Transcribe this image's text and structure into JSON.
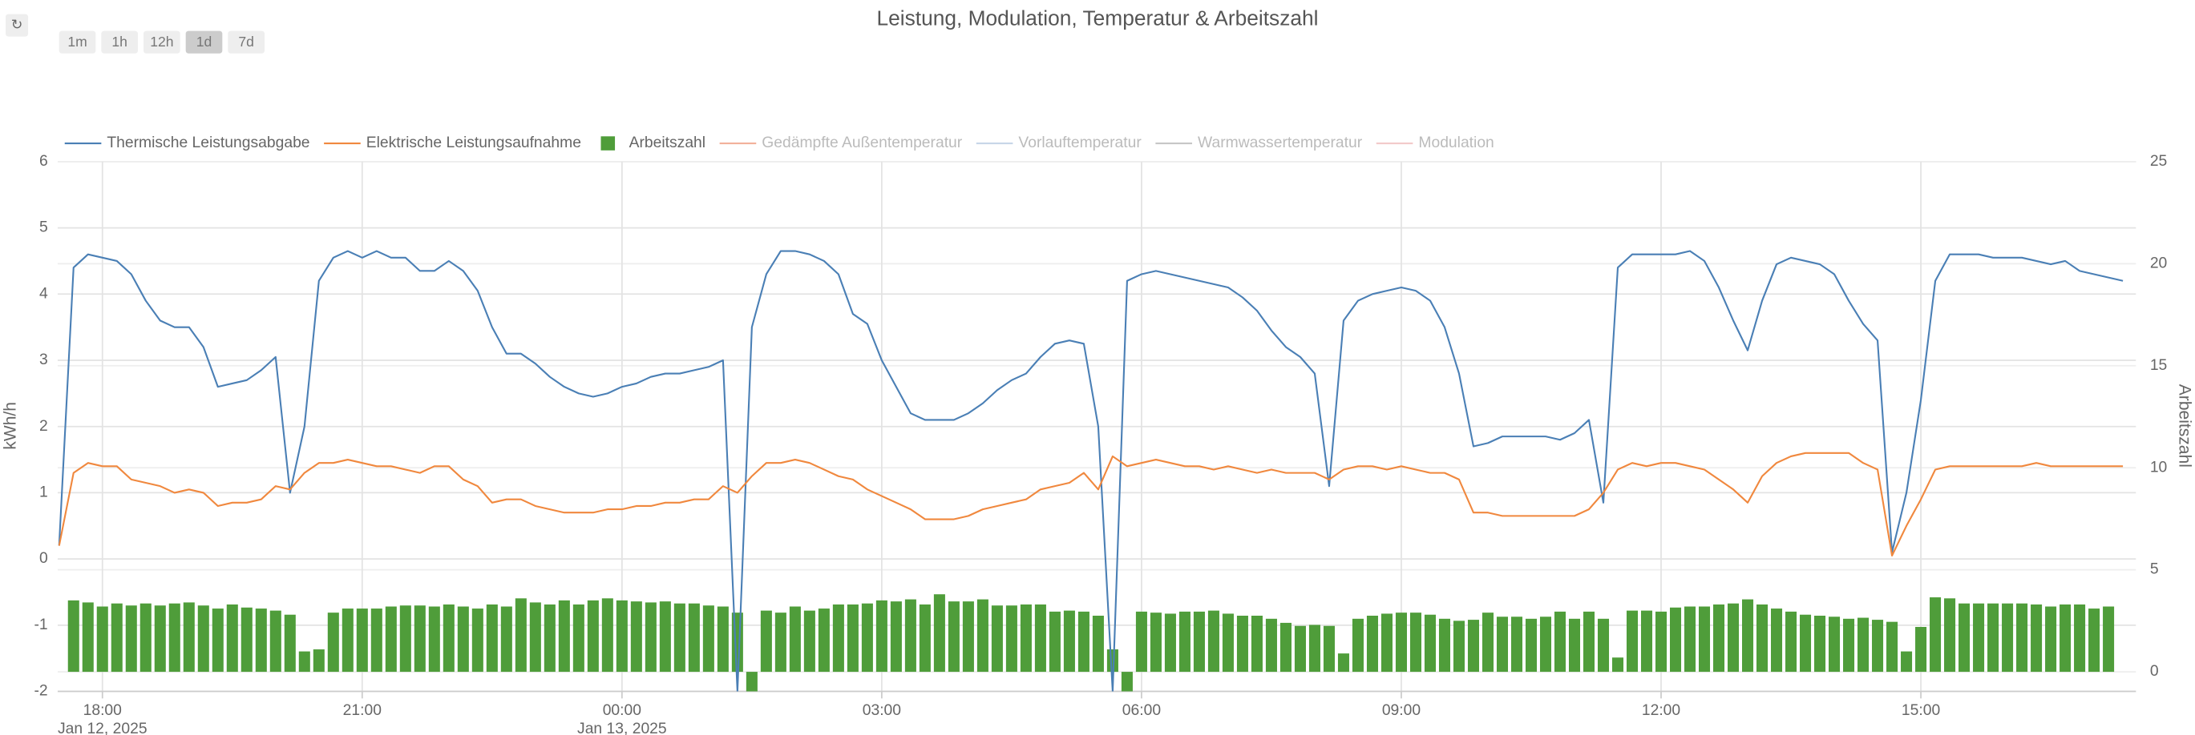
{
  "controls": {
    "refresh": "↻",
    "ranges": [
      "1m",
      "1h",
      "12h",
      "1d",
      "7d"
    ],
    "active_range": "1d"
  },
  "chart_data": {
    "type": "line",
    "title": "Leistung, Modulation, Temperatur & Arbeitszahl",
    "y_label": "kWh/h",
    "y2_label": "Arbeitszahl",
    "xlim": [
      "2025-01-12T17:29",
      "2025-01-13T17:29"
    ],
    "xticks": [
      {
        "value": "2025-01-12T18:00",
        "label": "18:00"
      },
      {
        "value": "2025-01-12T21:00",
        "label": "21:00"
      },
      {
        "value": "2025-01-13T00:00",
        "label": "00:00"
      },
      {
        "value": "2025-01-13T03:00",
        "label": "03:00"
      },
      {
        "value": "2025-01-13T06:00",
        "label": "06:00"
      },
      {
        "value": "2025-01-13T09:00",
        "label": "09:00"
      },
      {
        "value": "2025-01-13T12:00",
        "label": "12:00"
      },
      {
        "value": "2025-01-13T15:00",
        "label": "15:00"
      }
    ],
    "x_date_labels": [
      {
        "value": "2025-01-12T18:00",
        "label": "Jan 12, 2025"
      },
      {
        "value": "2025-01-13T00:00",
        "label": "Jan 13, 2025"
      }
    ],
    "ylim": [
      -2,
      6
    ],
    "yticks": [
      -2,
      -1,
      0,
      1,
      2,
      3,
      4,
      5,
      6
    ],
    "y2lim": [
      -0.96,
      25
    ],
    "y2ticks": [
      0,
      5,
      10,
      15,
      20,
      25
    ],
    "grid": true,
    "x": [
      "2025-01-12T17:30",
      "2025-01-12T17:40",
      "2025-01-12T17:50",
      "2025-01-12T18:00",
      "2025-01-12T18:10",
      "2025-01-12T18:20",
      "2025-01-12T18:30",
      "2025-01-12T18:40",
      "2025-01-12T18:50",
      "2025-01-12T19:00",
      "2025-01-12T19:10",
      "2025-01-12T19:20",
      "2025-01-12T19:30",
      "2025-01-12T19:40",
      "2025-01-12T19:50",
      "2025-01-12T20:00",
      "2025-01-12T20:10",
      "2025-01-12T20:20",
      "2025-01-12T20:30",
      "2025-01-12T20:40",
      "2025-01-12T20:50",
      "2025-01-12T21:00",
      "2025-01-12T21:10",
      "2025-01-12T21:20",
      "2025-01-12T21:30",
      "2025-01-12T21:40",
      "2025-01-12T21:50",
      "2025-01-12T22:00",
      "2025-01-12T22:10",
      "2025-01-12T22:20",
      "2025-01-12T22:30",
      "2025-01-12T22:40",
      "2025-01-12T22:50",
      "2025-01-12T23:00",
      "2025-01-12T23:10",
      "2025-01-12T23:20",
      "2025-01-12T23:30",
      "2025-01-12T23:40",
      "2025-01-12T23:50",
      "2025-01-13T00:00",
      "2025-01-13T00:10",
      "2025-01-13T00:20",
      "2025-01-13T00:30",
      "2025-01-13T00:40",
      "2025-01-13T00:50",
      "2025-01-13T01:00",
      "2025-01-13T01:10",
      "2025-01-13T01:20",
      "2025-01-13T01:30",
      "2025-01-13T01:40",
      "2025-01-13T01:50",
      "2025-01-13T02:00",
      "2025-01-13T02:10",
      "2025-01-13T02:20",
      "2025-01-13T02:30",
      "2025-01-13T02:40",
      "2025-01-13T02:50",
      "2025-01-13T03:00",
      "2025-01-13T03:10",
      "2025-01-13T03:20",
      "2025-01-13T03:30",
      "2025-01-13T03:40",
      "2025-01-13T03:50",
      "2025-01-13T04:00",
      "2025-01-13T04:10",
      "2025-01-13T04:20",
      "2025-01-13T04:30",
      "2025-01-13T04:40",
      "2025-01-13T04:50",
      "2025-01-13T05:00",
      "2025-01-13T05:10",
      "2025-01-13T05:20",
      "2025-01-13T05:30",
      "2025-01-13T05:40",
      "2025-01-13T05:50",
      "2025-01-13T06:00",
      "2025-01-13T06:10",
      "2025-01-13T06:20",
      "2025-01-13T06:30",
      "2025-01-13T06:40",
      "2025-01-13T06:50",
      "2025-01-13T07:00",
      "2025-01-13T07:10",
      "2025-01-13T07:20",
      "2025-01-13T07:30",
      "2025-01-13T07:40",
      "2025-01-13T07:50",
      "2025-01-13T08:00",
      "2025-01-13T08:10",
      "2025-01-13T08:20",
      "2025-01-13T08:30",
      "2025-01-13T08:40",
      "2025-01-13T08:50",
      "2025-01-13T09:00",
      "2025-01-13T09:10",
      "2025-01-13T09:20",
      "2025-01-13T09:30",
      "2025-01-13T09:40",
      "2025-01-13T09:50",
      "2025-01-13T10:00",
      "2025-01-13T10:10",
      "2025-01-13T10:20",
      "2025-01-13T10:30",
      "2025-01-13T10:40",
      "2025-01-13T10:50",
      "2025-01-13T11:00",
      "2025-01-13T11:10",
      "2025-01-13T11:20",
      "2025-01-13T11:30",
      "2025-01-13T11:40",
      "2025-01-13T11:50",
      "2025-01-13T12:00",
      "2025-01-13T12:10",
      "2025-01-13T12:20",
      "2025-01-13T12:30",
      "2025-01-13T12:40",
      "2025-01-13T12:50",
      "2025-01-13T13:00",
      "2025-01-13T13:10",
      "2025-01-13T13:20",
      "2025-01-13T13:30",
      "2025-01-13T13:40",
      "2025-01-13T13:50",
      "2025-01-13T14:00",
      "2025-01-13T14:10",
      "2025-01-13T14:20",
      "2025-01-13T14:30",
      "2025-01-13T14:40",
      "2025-01-13T14:50",
      "2025-01-13T15:00",
      "2025-01-13T15:10",
      "2025-01-13T15:20",
      "2025-01-13T15:30",
      "2025-01-13T15:40",
      "2025-01-13T15:50",
      "2025-01-13T16:00",
      "2025-01-13T16:10",
      "2025-01-13T16:20",
      "2025-01-13T16:30",
      "2025-01-13T16:40",
      "2025-01-13T16:50",
      "2025-01-13T17:00",
      "2025-01-13T17:10",
      "2025-01-13T17:20"
    ],
    "series": [
      {
        "name": "Thermische Leistungsabgabe",
        "color": "#4a7fb5",
        "type": "line",
        "values": [
          0.2,
          4.4,
          4.6,
          4.55,
          4.5,
          4.3,
          3.9,
          3.6,
          3.5,
          3.5,
          3.2,
          2.6,
          2.65,
          2.7,
          2.85,
          3.05,
          1.0,
          2.0,
          4.2,
          4.55,
          4.65,
          4.55,
          4.65,
          4.55,
          4.55,
          4.35,
          4.35,
          4.5,
          4.35,
          4.05,
          3.5,
          3.1,
          3.1,
          2.95,
          2.75,
          2.6,
          2.5,
          2.45,
          2.5,
          2.6,
          2.65,
          2.75,
          2.8,
          2.8,
          2.85,
          2.9,
          3.0,
          -2.0,
          3.5,
          4.3,
          4.65,
          4.65,
          4.6,
          4.5,
          4.3,
          3.7,
          3.55,
          3.0,
          2.6,
          2.2,
          2.1,
          2.1,
          2.1,
          2.2,
          2.35,
          2.55,
          2.7,
          2.8,
          3.05,
          3.25,
          3.3,
          3.25,
          2.0,
          -2.0,
          4.2,
          4.3,
          4.35,
          4.3,
          4.25,
          4.2,
          4.15,
          4.1,
          3.95,
          3.75,
          3.45,
          3.2,
          3.05,
          2.8,
          1.1,
          3.6,
          3.9,
          4.0,
          4.05,
          4.1,
          4.05,
          3.9,
          3.5,
          2.8,
          1.7,
          1.75,
          1.85,
          1.85,
          1.85,
          1.85,
          1.8,
          1.9,
          2.1,
          0.85,
          4.4,
          4.6,
          4.6,
          4.6,
          4.6,
          4.65,
          4.5,
          4.1,
          3.6,
          3.15,
          3.9,
          4.45,
          4.55,
          4.5,
          4.45,
          4.3,
          3.9,
          3.55,
          3.3,
          0.1,
          1.0,
          2.4,
          4.2,
          4.6,
          4.6,
          4.6,
          4.55,
          4.55,
          4.55,
          4.5,
          4.45,
          4.5,
          4.35,
          4.3,
          4.25,
          4.2
        ]
      },
      {
        "name": "Elektrische Leistungsaufnahme",
        "color": "#f0883e",
        "type": "line",
        "values": [
          0.2,
          1.3,
          1.45,
          1.4,
          1.4,
          1.2,
          1.15,
          1.1,
          1.0,
          1.05,
          1.0,
          0.8,
          0.85,
          0.85,
          0.9,
          1.1,
          1.05,
          1.3,
          1.45,
          1.45,
          1.5,
          1.45,
          1.4,
          1.4,
          1.35,
          1.3,
          1.4,
          1.4,
          1.2,
          1.1,
          0.85,
          0.9,
          0.9,
          0.8,
          0.75,
          0.7,
          0.7,
          0.7,
          0.75,
          0.75,
          0.8,
          0.8,
          0.85,
          0.85,
          0.9,
          0.9,
          1.1,
          1.0,
          1.25,
          1.45,
          1.45,
          1.5,
          1.45,
          1.35,
          1.25,
          1.2,
          1.05,
          0.95,
          0.85,
          0.75,
          0.6,
          0.6,
          0.6,
          0.65,
          0.75,
          0.8,
          0.85,
          0.9,
          1.05,
          1.1,
          1.15,
          1.3,
          1.05,
          1.55,
          1.4,
          1.45,
          1.5,
          1.45,
          1.4,
          1.4,
          1.35,
          1.4,
          1.35,
          1.3,
          1.35,
          1.3,
          1.3,
          1.3,
          1.2,
          1.35,
          1.4,
          1.4,
          1.35,
          1.4,
          1.35,
          1.3,
          1.3,
          1.2,
          0.7,
          0.7,
          0.65,
          0.65,
          0.65,
          0.65,
          0.65,
          0.65,
          0.75,
          1.0,
          1.35,
          1.45,
          1.4,
          1.45,
          1.45,
          1.4,
          1.35,
          1.2,
          1.05,
          0.85,
          1.25,
          1.45,
          1.55,
          1.6,
          1.6,
          1.6,
          1.6,
          1.45,
          1.35,
          0.05,
          0.5,
          0.9,
          1.35,
          1.4,
          1.4,
          1.4,
          1.4,
          1.4,
          1.4,
          1.45,
          1.4,
          1.4,
          1.4,
          1.4,
          1.4,
          1.4
        ]
      },
      {
        "name": "Arbeitszahl",
        "color": "#4f9d3a",
        "type": "bar",
        "axis": "y2",
        "values": [
          null,
          3.5,
          3.4,
          3.2,
          3.35,
          3.25,
          3.35,
          3.25,
          3.35,
          3.4,
          3.25,
          3.1,
          3.3,
          3.15,
          3.1,
          3.0,
          2.8,
          1.0,
          1.1,
          2.9,
          3.1,
          3.1,
          3.1,
          3.2,
          3.25,
          3.25,
          3.2,
          3.3,
          3.2,
          3.1,
          3.3,
          3.2,
          3.6,
          3.4,
          3.3,
          3.5,
          3.3,
          3.5,
          3.6,
          3.5,
          3.45,
          3.4,
          3.45,
          3.35,
          3.35,
          3.25,
          3.2,
          2.9,
          -1.0,
          3.0,
          2.9,
          3.2,
          3.0,
          3.1,
          3.3,
          3.3,
          3.35,
          3.5,
          3.45,
          3.55,
          3.3,
          3.8,
          3.45,
          3.45,
          3.55,
          3.25,
          3.25,
          3.3,
          3.3,
          2.95,
          3.0,
          2.95,
          2.75,
          1.1,
          -1.0,
          2.95,
          2.9,
          2.85,
          2.95,
          2.95,
          3.0,
          2.85,
          2.75,
          2.75,
          2.6,
          2.4,
          2.25,
          2.3,
          2.25,
          0.9,
          2.6,
          2.75,
          2.85,
          2.9,
          2.9,
          2.8,
          2.6,
          2.5,
          2.55,
          2.9,
          2.7,
          2.7,
          2.6,
          2.7,
          2.95,
          2.6,
          2.95,
          2.6,
          0.7,
          3.0,
          3.0,
          2.95,
          3.15,
          3.2,
          3.2,
          3.3,
          3.35,
          3.55,
          3.3,
          3.1,
          2.95,
          2.8,
          2.75,
          2.7,
          2.6,
          2.65,
          2.55,
          2.45,
          1.0,
          2.2,
          3.65,
          3.6,
          3.35,
          3.35,
          3.35,
          3.35,
          3.35,
          3.3,
          3.2,
          3.3,
          3.3,
          3.1,
          3.2,
          null
        ]
      }
    ],
    "hidden_series": [
      {
        "name": "Gedämpfte Außentemperatur",
        "color": "#e8734a"
      },
      {
        "name": "Vorlauftemperatur",
        "color": "#9bb5d6"
      },
      {
        "name": "Warmwassertemperatur",
        "color": "#999999"
      },
      {
        "name": "Modulation",
        "color": "#e8a0a0"
      }
    ]
  }
}
